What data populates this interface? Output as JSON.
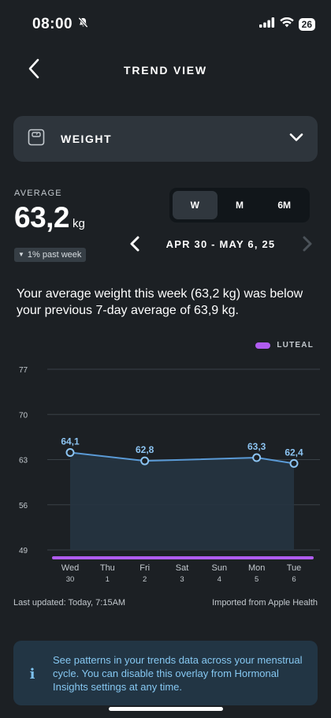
{
  "status_bar": {
    "time": "08:00",
    "battery": "26"
  },
  "header": {
    "title": "TREND VIEW"
  },
  "metric_selector": {
    "label": "WEIGHT"
  },
  "average": {
    "label": "AVERAGE",
    "value": "63,2",
    "unit": "kg",
    "change": "1% past week"
  },
  "range_tabs": {
    "items": [
      "W",
      "M",
      "6M"
    ],
    "active": "W"
  },
  "date_nav": {
    "range": "APR 30 - MAY 6, 25"
  },
  "summary": "Your average weight this week (63,2 kg) was below your previous 7-day average of 63,9 kg.",
  "legend": {
    "label": "LUTEAL",
    "color": "#b05cf0"
  },
  "chart_data": {
    "type": "line",
    "x": [
      {
        "day": "Wed",
        "date": "30"
      },
      {
        "day": "Thu",
        "date": "1"
      },
      {
        "day": "Fri",
        "date": "2"
      },
      {
        "day": "Sat",
        "date": "3"
      },
      {
        "day": "Sun",
        "date": "4"
      },
      {
        "day": "Mon",
        "date": "5"
      },
      {
        "day": "Tue",
        "date": "6"
      }
    ],
    "y_ticks": [
      "77",
      "70",
      "63",
      "56",
      "49"
    ],
    "ylim": [
      49,
      77
    ],
    "series": [
      {
        "values": [
          64.1,
          null,
          62.8,
          null,
          null,
          63.3,
          62.4
        ],
        "labels": [
          "64,1",
          "",
          "62,8",
          "",
          "",
          "63,3",
          "62,4"
        ],
        "color": "#5a9ad6"
      }
    ],
    "phase_band": {
      "label": "LUTEAL",
      "color": "#b05cf0"
    },
    "grid": true
  },
  "footer": {
    "updated": "Last updated: Today, 7:15AM",
    "imported": "Imported from Apple Health"
  },
  "info": {
    "text": "See patterns in your trends data across your menstrual cycle. You can disable this overlay from Hormonal Insights settings at any time.",
    "icon": "i"
  }
}
